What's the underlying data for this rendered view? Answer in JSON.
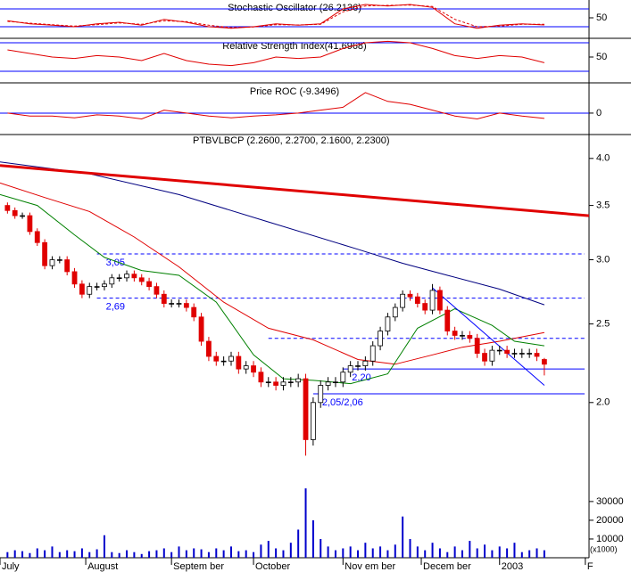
{
  "chart_data": [
    {
      "type": "line",
      "title": "Stochastic Oscillator (26.2136)",
      "x": [
        0,
        3,
        6,
        9,
        12,
        15,
        18,
        21,
        24,
        27,
        30,
        33,
        36,
        39,
        42,
        45,
        48,
        51,
        54,
        57,
        60,
        63,
        66,
        69,
        72
      ],
      "series": [
        {
          "color": "#e00000",
          "dashed": false,
          "values": [
            40,
            30,
            25,
            20,
            30,
            35,
            25,
            45,
            35,
            20,
            15,
            20,
            30,
            25,
            30,
            80,
            95,
            90,
            95,
            85,
            30,
            15,
            25,
            30,
            26
          ]
        },
        {
          "color": "#e00000",
          "dashed": true,
          "values": [
            38,
            32,
            27,
            22,
            27,
            33,
            28,
            40,
            37,
            25,
            17,
            19,
            27,
            26,
            28,
            70,
            90,
            92,
            93,
            88,
            45,
            20,
            22,
            28,
            28
          ]
        }
      ],
      "xlim": [
        -1,
        78
      ],
      "ylim": [
        -16,
        110
      ],
      "yticks": [
        50
      ],
      "levels": [
        80,
        20
      ],
      "level_color": "#0000ff"
    },
    {
      "type": "line",
      "title": "Relative Strength Index(41.6968)",
      "x": [
        0,
        3,
        6,
        9,
        12,
        15,
        18,
        21,
        24,
        27,
        30,
        33,
        36,
        39,
        42,
        45,
        48,
        51,
        54,
        57,
        60,
        63,
        66,
        69,
        72
      ],
      "series": [
        {
          "color": "#e00000",
          "dashed": false,
          "values": [
            60,
            55,
            50,
            48,
            52,
            50,
            45,
            55,
            45,
            40,
            38,
            42,
            50,
            48,
            50,
            62,
            70,
            72,
            70,
            62,
            52,
            48,
            52,
            50,
            42
          ]
        }
      ],
      "xlim": [
        -1,
        78
      ],
      "ylim": [
        15,
        75
      ],
      "yticks": [
        50
      ],
      "levels": [
        70,
        30
      ],
      "level_color": "#0000ff"
    },
    {
      "type": "line",
      "title": "Price ROC (-9.3496)",
      "x": [
        0,
        3,
        6,
        9,
        12,
        15,
        18,
        21,
        24,
        27,
        30,
        33,
        36,
        39,
        42,
        45,
        48,
        51,
        54,
        57,
        60,
        63,
        66,
        69,
        72
      ],
      "series": [
        {
          "color": "#e00000",
          "dashed": false,
          "values": [
            0,
            -5,
            -5,
            -8,
            -3,
            -5,
            -10,
            5,
            0,
            -5,
            -8,
            -5,
            -3,
            0,
            5,
            10,
            35,
            20,
            15,
            5,
            -5,
            -10,
            0,
            -5,
            -9
          ]
        }
      ],
      "xlim": [
        -1,
        78
      ],
      "ylim": [
        -35,
        50
      ],
      "yticks": [
        0
      ],
      "levels": [
        0
      ],
      "level_color": "#0000ff"
    },
    {
      "type": "candlestick",
      "title": "PTBVLBCP (2.2600, 2.2700, 2.1600, 2.2300)",
      "open": [
        3.5,
        3.45,
        3.4,
        3.4,
        3.25,
        3.15,
        2.95,
        3.0,
        3.0,
        2.9,
        2.8,
        2.72,
        2.78,
        2.78,
        2.8,
        2.85,
        2.85,
        2.88,
        2.85,
        2.82,
        2.78,
        2.72,
        2.65,
        2.65,
        2.65,
        2.62,
        2.55,
        2.38,
        2.28,
        2.25,
        2.25,
        2.28,
        2.2,
        2.22,
        2.18,
        2.12,
        2.12,
        2.1,
        2.12,
        2.12,
        2.14,
        1.8,
        2.0,
        2.1,
        2.12,
        2.12,
        2.18,
        2.22,
        2.22,
        2.25,
        2.35,
        2.45,
        2.55,
        2.62,
        2.72,
        2.7,
        2.65,
        2.6,
        2.75,
        2.6,
        2.45,
        2.42,
        2.42,
        2.4,
        2.3,
        2.25,
        2.32,
        2.32,
        2.3,
        2.3,
        2.3,
        2.3,
        2.26
      ],
      "high": [
        3.53,
        3.48,
        3.43,
        3.43,
        3.28,
        3.18,
        3.03,
        3.03,
        3.03,
        2.93,
        2.83,
        2.81,
        2.81,
        2.83,
        2.88,
        2.88,
        2.91,
        2.91,
        2.88,
        2.85,
        2.81,
        2.75,
        2.68,
        2.68,
        2.68,
        2.65,
        2.58,
        2.41,
        2.31,
        2.28,
        2.31,
        2.31,
        2.25,
        2.25,
        2.21,
        2.15,
        2.15,
        2.15,
        2.15,
        2.17,
        2.17,
        2.03,
        2.13,
        2.15,
        2.15,
        2.21,
        2.25,
        2.25,
        2.28,
        2.38,
        2.48,
        2.58,
        2.65,
        2.75,
        2.75,
        2.73,
        2.68,
        2.8,
        2.78,
        2.63,
        2.48,
        2.45,
        2.45,
        2.43,
        2.33,
        2.35,
        2.35,
        2.35,
        2.33,
        2.33,
        2.33,
        2.33,
        2.27
      ],
      "low": [
        3.42,
        3.37,
        3.37,
        3.22,
        3.12,
        2.92,
        2.92,
        2.97,
        2.87,
        2.77,
        2.69,
        2.69,
        2.75,
        2.75,
        2.77,
        2.82,
        2.82,
        2.82,
        2.79,
        2.75,
        2.69,
        2.62,
        2.62,
        2.62,
        2.59,
        2.52,
        2.35,
        2.25,
        2.22,
        2.22,
        2.22,
        2.17,
        2.17,
        2.15,
        2.09,
        2.09,
        2.07,
        2.07,
        2.09,
        2.09,
        1.72,
        1.77,
        1.97,
        2.07,
        2.09,
        2.09,
        2.15,
        2.19,
        2.19,
        2.22,
        2.32,
        2.42,
        2.52,
        2.59,
        2.67,
        2.62,
        2.57,
        2.57,
        2.57,
        2.42,
        2.39,
        2.39,
        2.37,
        2.27,
        2.22,
        2.22,
        2.29,
        2.27,
        2.27,
        2.27,
        2.27,
        2.25,
        2.16
      ],
      "close": [
        3.45,
        3.4,
        3.4,
        3.25,
        3.15,
        2.95,
        3.0,
        3.0,
        2.9,
        2.8,
        2.72,
        2.78,
        2.78,
        2.8,
        2.85,
        2.85,
        2.88,
        2.85,
        2.82,
        2.78,
        2.72,
        2.65,
        2.65,
        2.65,
        2.62,
        2.55,
        2.38,
        2.28,
        2.25,
        2.25,
        2.28,
        2.2,
        2.22,
        2.18,
        2.12,
        2.12,
        2.1,
        2.12,
        2.12,
        2.14,
        1.8,
        2.0,
        2.1,
        2.12,
        2.12,
        2.18,
        2.22,
        2.22,
        2.25,
        2.35,
        2.45,
        2.55,
        2.62,
        2.72,
        2.7,
        2.65,
        2.6,
        2.75,
        2.6,
        2.45,
        2.42,
        2.42,
        2.4,
        2.3,
        2.25,
        2.32,
        2.32,
        2.3,
        2.3,
        2.3,
        2.3,
        2.28,
        2.23
      ],
      "up_color": "#ffffff",
      "down_color": "#e00000",
      "overlays": [
        {
          "color": "#000080",
          "width": 1,
          "x": [
            -1,
            11,
            23,
            35,
            47,
            53,
            59,
            66,
            72
          ],
          "values": [
            3.96,
            3.83,
            3.61,
            3.34,
            3.09,
            2.97,
            2.87,
            2.76,
            2.64
          ]
        },
        {
          "color": "#e00000",
          "width": 1,
          "x": [
            -1,
            5,
            11,
            17,
            23,
            29,
            35,
            41,
            47,
            52,
            57,
            61,
            66,
            72
          ],
          "values": [
            3.73,
            3.58,
            3.44,
            3.2,
            2.94,
            2.66,
            2.47,
            2.39,
            2.26,
            2.23,
            2.29,
            2.34,
            2.38,
            2.44
          ]
        },
        {
          "color": "#008000",
          "width": 1,
          "x": [
            -1,
            4,
            9,
            13,
            18,
            23,
            28,
            33,
            37,
            41,
            46,
            51,
            55,
            60,
            65,
            68,
            72
          ],
          "values": [
            3.61,
            3.5,
            3.22,
            3.02,
            2.91,
            2.87,
            2.66,
            2.29,
            2.14,
            2.13,
            2.11,
            2.17,
            2.47,
            2.61,
            2.49,
            2.38,
            2.35
          ]
        },
        {
          "color": "#e00000",
          "width": 3,
          "x": [
            -1,
            78
          ],
          "values": [
            3.92,
            3.4
          ]
        },
        {
          "color": "#0000ff",
          "width": 1,
          "x": [
            57,
            72
          ],
          "values": [
            2.77,
            2.1
          ]
        }
      ],
      "levels": [
        {
          "value": 3.05,
          "label": "3,05",
          "dashed": true,
          "xstart": 12
        },
        {
          "value": 2.69,
          "label": "2,69",
          "dashed": true,
          "xstart": 12
        },
        {
          "value": 2.4,
          "dashed": true,
          "xstart": 35
        },
        {
          "value": 2.2,
          "label": "2,20",
          "dashed": false,
          "xstart": 45
        },
        {
          "value": 2.05,
          "label": "2,05/2,06",
          "dashed": false,
          "xstart": 41
        }
      ],
      "level_color": "#0000ff",
      "log_scale": true,
      "xlim": [
        -1,
        78
      ],
      "xticks": [
        {
          "value": -1,
          "label": "July"
        },
        {
          "value": 10.5,
          "label": "August"
        },
        {
          "value": 22,
          "label": "Septem ber"
        },
        {
          "value": 33,
          "label": "October"
        },
        {
          "value": 45,
          "label": "Nov em ber"
        },
        {
          "value": 55.5,
          "label": "Decem ber"
        },
        {
          "value": 66,
          "label": "2003"
        },
        {
          "value": 77.5,
          "label": "F"
        }
      ],
      "ylim": [
        1.6,
        4.27
      ],
      "yticks": [
        {
          "value": 2,
          "label": "2.0"
        },
        2.5,
        {
          "value": 3,
          "label": "3.0"
        },
        3.5,
        {
          "value": 4,
          "label": "4.0"
        }
      ]
    },
    {
      "type": "bar",
      "color": "#0000cc",
      "values": [
        3000,
        4000,
        3500,
        2500,
        5000,
        4000,
        6000,
        3000,
        4000,
        3500,
        5000,
        3000,
        4500,
        12000,
        3000,
        2500,
        4000,
        3000,
        2000,
        3500,
        4000,
        5000,
        3000,
        6000,
        4000,
        5000,
        4500,
        3000,
        5000,
        4000,
        6000,
        3500,
        4000,
        3000,
        7000,
        9000,
        5000,
        4000,
        8000,
        15000,
        37000,
        20000,
        10000,
        6000,
        4000,
        5000,
        6000,
        4000,
        8000,
        5000,
        6000,
        4000,
        7000,
        22000,
        10000,
        6000,
        4000,
        8000,
        5000,
        3000,
        6000,
        4000,
        9000,
        5000,
        7000,
        4000,
        6000,
        5000,
        8000,
        3000,
        4000,
        5000,
        4000
      ],
      "xlim": [
        -1,
        78
      ],
      "ylim": [
        0,
        38500
      ],
      "yticks": [
        10000,
        20000,
        30000
      ],
      "unit_label": "(x1000)"
    }
  ]
}
